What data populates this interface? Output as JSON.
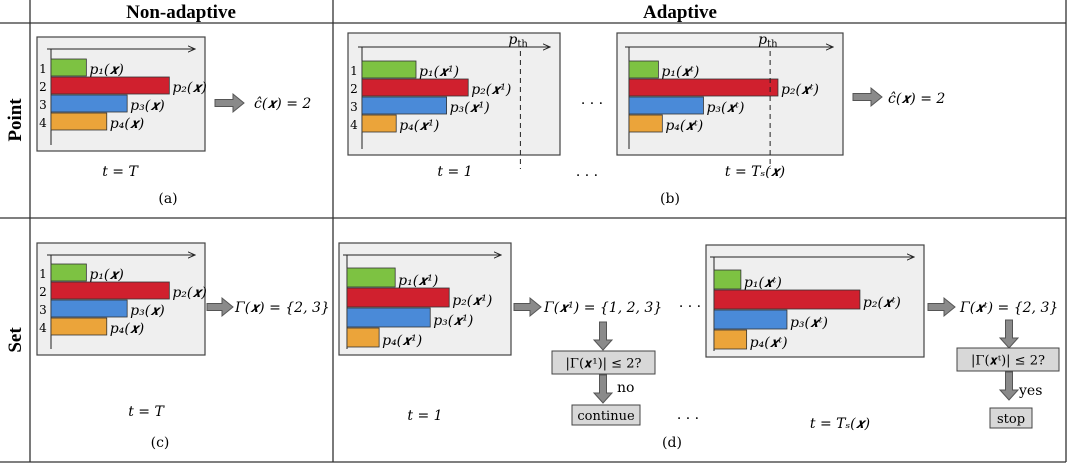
{
  "columns": {
    "non_adaptive": "Non-adaptive",
    "adaptive": "Adaptive"
  },
  "rows": {
    "point": "Point",
    "set": "Set"
  },
  "colors": {
    "green": "#7dc242",
    "red": "#d0202e",
    "blue": "#4a8ad8",
    "orange": "#eba43a",
    "panel_bg": "#efefef",
    "box_bg": "#d8d8d8"
  },
  "class_indices": [
    "1",
    "2",
    "3",
    "4"
  ],
  "threshold_label": "p_th",
  "ellipsis": "· · ·",
  "panels": {
    "a": {
      "bars": [
        0.26,
        0.87,
        0.56,
        0.41
      ],
      "labels": [
        "p₁(𝒙)",
        "p₂(𝒙)",
        "p₃(𝒙)",
        "p₄(𝒙)"
      ],
      "time": "t = T",
      "caption": "(a)",
      "result": "ĉ(𝒙) = 2"
    },
    "b": {
      "left": {
        "bars": [
          0.3,
          0.59,
          0.47,
          0.19
        ],
        "labels": [
          "p₁(𝒙¹)",
          "p₂(𝒙¹)",
          "p₃(𝒙¹)",
          "p₄(𝒙¹)"
        ],
        "threshold": 0.88,
        "time": "t = 1"
      },
      "right": {
        "bars": [
          0.15,
          0.76,
          0.38,
          0.17
        ],
        "labels": [
          "p₁(𝒙ᵗ)",
          "p₂(𝒙ᵗ)",
          "p₃(𝒙ᵗ)",
          "p₄(𝒙ᵗ)"
        ],
        "threshold": 0.72,
        "time": "t = Tₛ(𝒙)"
      },
      "caption": "(b)",
      "result": "ĉ(𝒙) = 2"
    },
    "c": {
      "bars": [
        0.26,
        0.87,
        0.56,
        0.41
      ],
      "labels": [
        "p₁(𝒙)",
        "p₂(𝒙)",
        "p₃(𝒙)",
        "p₄(𝒙)"
      ],
      "time": "t = T",
      "caption": "(c)",
      "result": "Γ(𝒙) = {2, 3}"
    },
    "d": {
      "left": {
        "bars": [
          0.33,
          0.7,
          0.57,
          0.22
        ],
        "labels": [
          "p₁(𝒙¹)",
          "p₂(𝒙¹)",
          "p₃(𝒙¹)",
          "p₄(𝒙¹)"
        ],
        "time": "t = 1",
        "result": "Γ(𝒙¹) = {1, 2, 3}",
        "check": "|Γ(𝒙¹)| ≤ 2?",
        "answer": "no",
        "action": "continue"
      },
      "right": {
        "bars": [
          0.14,
          0.76,
          0.38,
          0.17
        ],
        "labels": [
          "p₁(𝒙ᵗ)",
          "p₂(𝒙ᵗ)",
          "p₃(𝒙ᵗ)",
          "p₄(𝒙ᵗ)"
        ],
        "time": "t = Tₛ(𝒙)",
        "result": "Γ(𝒙ᵗ) = {2, 3}",
        "check": "|Γ(𝒙ᵗ)| ≤ 2?",
        "answer": "yes",
        "action": "stop"
      },
      "caption": "(d)"
    }
  }
}
